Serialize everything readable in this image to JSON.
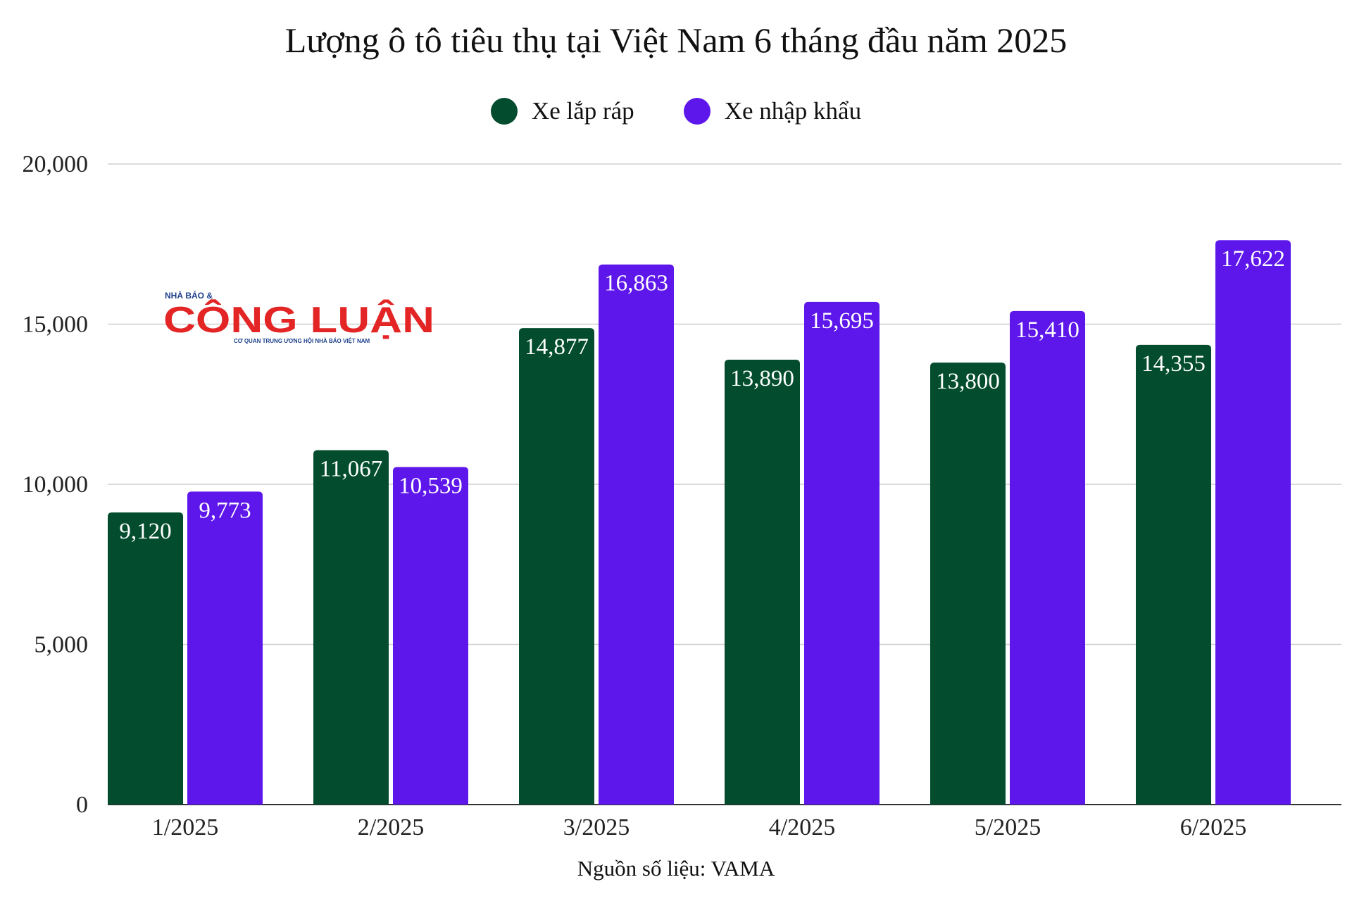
{
  "chart_data": {
    "type": "bar",
    "title": "Lượng ô tô tiêu thụ tại Việt Nam 6 tháng đầu năm 2025",
    "categories": [
      "1/2025",
      "2/2025",
      "3/2025",
      "4/2025",
      "5/2025",
      "6/2025"
    ],
    "series": [
      {
        "name": "Xe lắp ráp",
        "color": "#034d2e",
        "values": [
          9120,
          11067,
          14877,
          13890,
          13800,
          14355
        ],
        "labels": [
          "9,120",
          "11,067",
          "14,877",
          "13,890",
          "13,800",
          "14,355"
        ]
      },
      {
        "name": "Xe nhập khẩu",
        "color": "#5e17eb",
        "values": [
          9773,
          10539,
          16863,
          15695,
          15410,
          17622
        ],
        "labels": [
          "9,773",
          "10,539",
          "16,863",
          "15,695",
          "15,410",
          "17,622"
        ]
      }
    ],
    "ylim": [
      0,
      20000
    ],
    "yticks": [
      0,
      5000,
      10000,
      15000,
      20000
    ],
    "ytick_labels": [
      "0",
      "5,000",
      "10,000",
      "15,000",
      "20,000"
    ],
    "xlabel": "",
    "ylabel": "",
    "grid": true,
    "legend_position": "top-center",
    "source_note": "Nguồn số liệu: VAMA"
  },
  "logo": {
    "top_text": "NHÀ BÁO &",
    "name": "CÔNG LUẬN",
    "tagline": "CƠ QUAN TRUNG ƯƠNG HỘI NHÀ BÁO VIỆT NAM",
    "color": "#e32526"
  }
}
